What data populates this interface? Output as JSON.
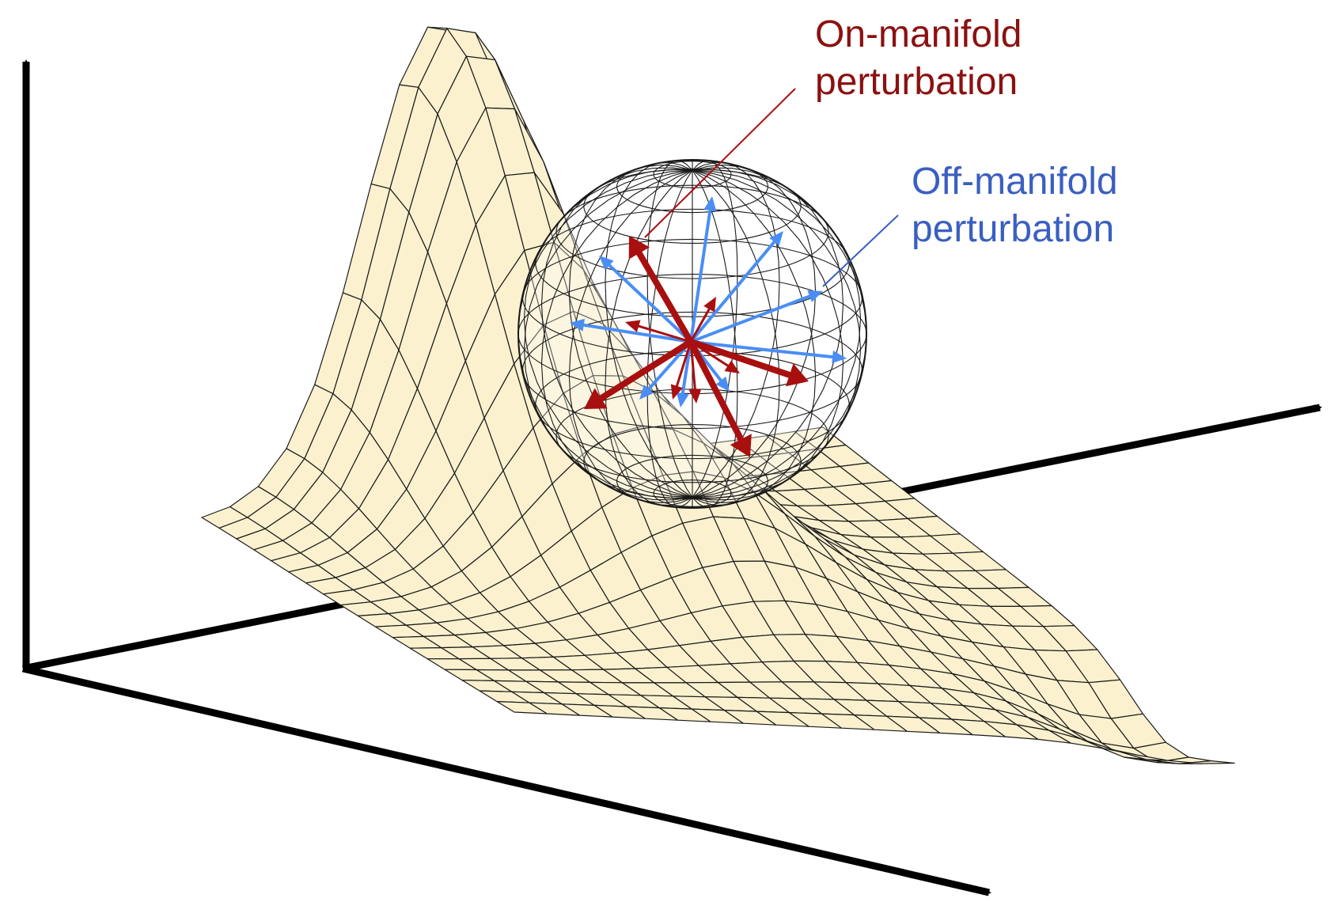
{
  "labels": {
    "on_manifold": {
      "line1": "On-manifold",
      "line2": "perturbation"
    },
    "off_manifold": {
      "line1": "Off-manifold",
      "line2": "perturbation"
    }
  },
  "colors": {
    "surface_fill": "#fbf1cf",
    "mesh_line": "#1a1a1a",
    "axis": "#000000",
    "on_manifold": "#a80f0f",
    "on_manifold_text": "#8b1111",
    "off_manifold": "#4a8ef5",
    "off_manifold_text": "#3a5fc0",
    "background": "#ffffff"
  }
}
